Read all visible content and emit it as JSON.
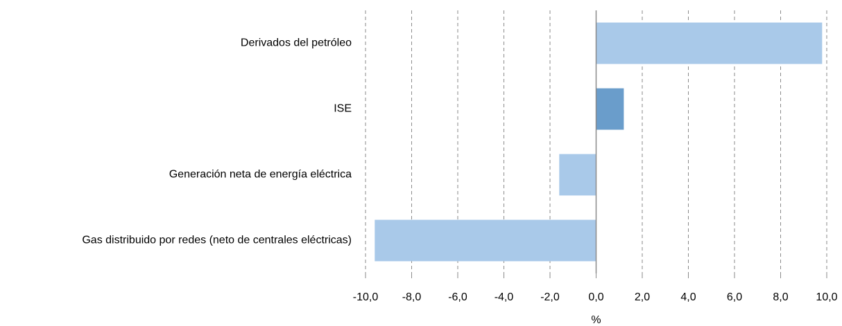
{
  "chart_data": {
    "type": "barh",
    "categories": [
      "Derivados del petróleo",
      "ISE",
      "Generación neta de energía eléctrica",
      "Gas distribuido por redes (neto de centrales eléctricas)"
    ],
    "values": [
      9.8,
      1.2,
      -1.6,
      -9.6
    ],
    "colors": [
      "#a9c9e9",
      "#6a9dcb",
      "#a9c9e9",
      "#a9c9e9"
    ],
    "x_label": "%",
    "xlim": [
      -10,
      10
    ],
    "xticks": [
      {
        "value": -10,
        "label": "-10,0"
      },
      {
        "value": -8,
        "label": "-8,0"
      },
      {
        "value": -6,
        "label": "-6,0"
      },
      {
        "value": -4,
        "label": "-4,0"
      },
      {
        "value": -2,
        "label": "-2,0"
      },
      {
        "value": 0,
        "label": "0,0"
      },
      {
        "value": 2,
        "label": "2,0"
      },
      {
        "value": 4,
        "label": "4,0"
      },
      {
        "value": 6,
        "label": "6,0"
      },
      {
        "value": 8,
        "label": "8,0"
      },
      {
        "value": 10,
        "label": "10,0"
      }
    ],
    "grid": true
  }
}
